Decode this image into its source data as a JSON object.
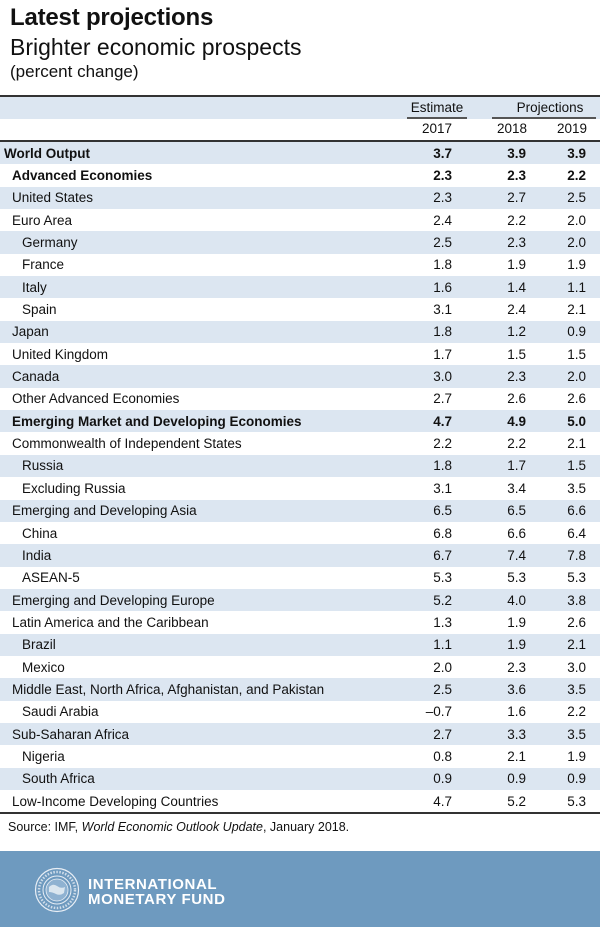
{
  "header": {
    "title": "Latest projections",
    "subtitle": "Brighter economic prospects",
    "unit": "(percent change)"
  },
  "columns": {
    "estimate_label": "Estimate",
    "projections_label": "Projections",
    "years": [
      "2017",
      "2018",
      "2019"
    ]
  },
  "rows": [
    {
      "label": "World Output",
      "level": 0,
      "bold": true,
      "values": [
        "3.7",
        "3.9",
        "3.9"
      ]
    },
    {
      "label": "Advanced Economies",
      "level": 1,
      "bold": true,
      "values": [
        "2.3",
        "2.3",
        "2.2"
      ]
    },
    {
      "label": "United States",
      "level": 1,
      "bold": false,
      "values": [
        "2.3",
        "2.7",
        "2.5"
      ]
    },
    {
      "label": "Euro Area",
      "level": 1,
      "bold": false,
      "values": [
        "2.4",
        "2.2",
        "2.0"
      ]
    },
    {
      "label": "Germany",
      "level": 2,
      "bold": false,
      "values": [
        "2.5",
        "2.3",
        "2.0"
      ]
    },
    {
      "label": "France",
      "level": 2,
      "bold": false,
      "values": [
        "1.8",
        "1.9",
        "1.9"
      ]
    },
    {
      "label": "Italy",
      "level": 2,
      "bold": false,
      "values": [
        "1.6",
        "1.4",
        "1.1"
      ]
    },
    {
      "label": "Spain",
      "level": 2,
      "bold": false,
      "values": [
        "3.1",
        "2.4",
        "2.1"
      ]
    },
    {
      "label": "Japan",
      "level": 1,
      "bold": false,
      "values": [
        "1.8",
        "1.2",
        "0.9"
      ]
    },
    {
      "label": "United Kingdom",
      "level": 1,
      "bold": false,
      "values": [
        "1.7",
        "1.5",
        "1.5"
      ]
    },
    {
      "label": "Canada",
      "level": 1,
      "bold": false,
      "values": [
        "3.0",
        "2.3",
        "2.0"
      ]
    },
    {
      "label": "Other Advanced Economies",
      "level": 1,
      "bold": false,
      "values": [
        "2.7",
        "2.6",
        "2.6"
      ]
    },
    {
      "label": "Emerging Market and Developing Economies",
      "level": 1,
      "bold": true,
      "values": [
        "4.7",
        "4.9",
        "5.0"
      ]
    },
    {
      "label": "Commonwealth of Independent States",
      "level": 1,
      "bold": false,
      "values": [
        "2.2",
        "2.2",
        "2.1"
      ]
    },
    {
      "label": "Russia",
      "level": 2,
      "bold": false,
      "values": [
        "1.8",
        "1.7",
        "1.5"
      ]
    },
    {
      "label": "Excluding Russia",
      "level": 2,
      "bold": false,
      "values": [
        "3.1",
        "3.4",
        "3.5"
      ]
    },
    {
      "label": "Emerging and Developing Asia",
      "level": 1,
      "bold": false,
      "values": [
        "6.5",
        "6.5",
        "6.6"
      ]
    },
    {
      "label": "China",
      "level": 2,
      "bold": false,
      "values": [
        "6.8",
        "6.6",
        "6.4"
      ]
    },
    {
      "label": "India",
      "level": 2,
      "bold": false,
      "values": [
        "6.7",
        "7.4",
        "7.8"
      ]
    },
    {
      "label": "ASEAN-5",
      "level": 2,
      "bold": false,
      "values": [
        "5.3",
        "5.3",
        "5.3"
      ]
    },
    {
      "label": "Emerging and Developing Europe",
      "level": 1,
      "bold": false,
      "values": [
        "5.2",
        "4.0",
        "3.8"
      ]
    },
    {
      "label": "Latin America and the Caribbean",
      "level": 1,
      "bold": false,
      "values": [
        "1.3",
        "1.9",
        "2.6"
      ]
    },
    {
      "label": "Brazil",
      "level": 2,
      "bold": false,
      "values": [
        "1.1",
        "1.9",
        "2.1"
      ]
    },
    {
      "label": "Mexico",
      "level": 2,
      "bold": false,
      "values": [
        "2.0",
        "2.3",
        "3.0"
      ]
    },
    {
      "label": "Middle East, North Africa, Afghanistan, and Pakistan",
      "level": 1,
      "bold": false,
      "values": [
        "2.5",
        "3.6",
        "3.5"
      ]
    },
    {
      "label": "Saudi Arabia",
      "level": 2,
      "bold": false,
      "values": [
        "–0.7",
        "1.6",
        "2.2"
      ]
    },
    {
      "label": "Sub-Saharan Africa",
      "level": 1,
      "bold": false,
      "values": [
        "2.7",
        "3.3",
        "3.5"
      ]
    },
    {
      "label": "Nigeria",
      "level": 2,
      "bold": false,
      "values": [
        "0.8",
        "2.1",
        "1.9"
      ]
    },
    {
      "label": "South Africa",
      "level": 2,
      "bold": false,
      "values": [
        "0.9",
        "0.9",
        "0.9"
      ]
    },
    {
      "label": "Low-Income Developing Countries",
      "level": 1,
      "bold": false,
      "values": [
        "4.7",
        "5.2",
        "5.3"
      ]
    }
  ],
  "source": {
    "prefix": "Source: IMF, ",
    "publication": "World Economic Outlook Update",
    "suffix": ", January 2018."
  },
  "footer": {
    "brand_line1": "INTERNATIONAL",
    "brand_line2": "MONETARY FUND",
    "seal_text": "INTERNATIONAL MONETARY FUND",
    "seal_icon": "imf-seal-icon"
  },
  "colors": {
    "row_shade": "#dce6f1",
    "footer_band": "#6e9abf",
    "rule": "#333333"
  }
}
